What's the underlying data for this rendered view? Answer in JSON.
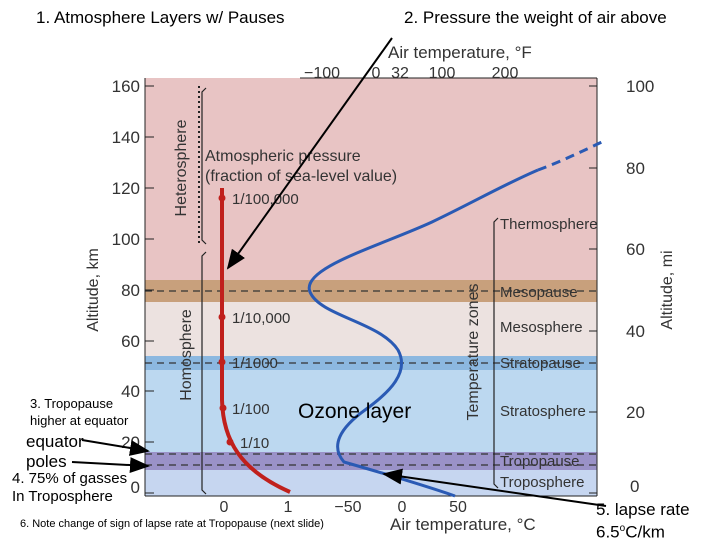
{
  "annotations": {
    "atmosphere_layers": "1. Atmosphere Layers  w/ Pauses",
    "pressure": "2. Pressure the weight of air above",
    "tropopause_note_1": "3. Tropopause",
    "tropopause_note_2": "higher at equator",
    "equator": "equator",
    "poles": "poles",
    "troposphere_gas_1": "4. 75% of gasses",
    "troposphere_gas_2": "In Troposphere",
    "lapse_sign": "6. Note change of sign of lapse rate at Tropopause (next slide)",
    "lapse_rate_1": "5. lapse rate",
    "lapse_rate_2": "6.5",
    "lapse_rate_deg": "o",
    "lapse_rate_unit": "C/km",
    "ozone": "Ozone   layer"
  },
  "figure": {
    "top_axis_title": "Air temperature, °F",
    "top_axis_ticks": [
      "−100",
      "0",
      "32",
      "100",
      "200"
    ],
    "bottom_axis_title": "Air temperature, °C",
    "bottom_axis_ticks": [
      "0",
      "1",
      "−50",
      "0",
      "50"
    ],
    "left_axis_title": "Altitude, km",
    "left_axis_ticks": [
      "160",
      "140",
      "120",
      "100",
      "80",
      "60",
      "40",
      "20",
      "0"
    ],
    "right_axis_title": "Altitude, mi",
    "right_axis_ticks": [
      "100",
      "80",
      "60",
      "40",
      "20",
      "0"
    ],
    "heterosphere": "Heterosphere",
    "homosphere": "Homosphere",
    "pressure_title_1": "Atmospheric pressure",
    "pressure_title_2": "(fraction of sea-level value)",
    "pressure_labels": [
      "1/100,000",
      "1/10,000",
      "1/1000",
      "1/100",
      "1/10"
    ],
    "temperature_zones": "Temperature zones",
    "zones": [
      "Thermosphere",
      "Mesopause",
      "Mesosphere",
      "Stratopause",
      "Stratosphere",
      "Tropopause",
      "Troposphere"
    ],
    "colors": {
      "thermosphere": "#e8c4c4",
      "mesopause": "#c8a07c",
      "mesosphere": "#ece2e0",
      "stratopause": "#8cb8e0",
      "stratosphere": "#bcd8f0",
      "tropopause": "#9a92c8",
      "troposphere": "#c6d6f0",
      "pressure_curve": "#c0201c",
      "temperature_curve": "#2a5ab4"
    }
  }
}
